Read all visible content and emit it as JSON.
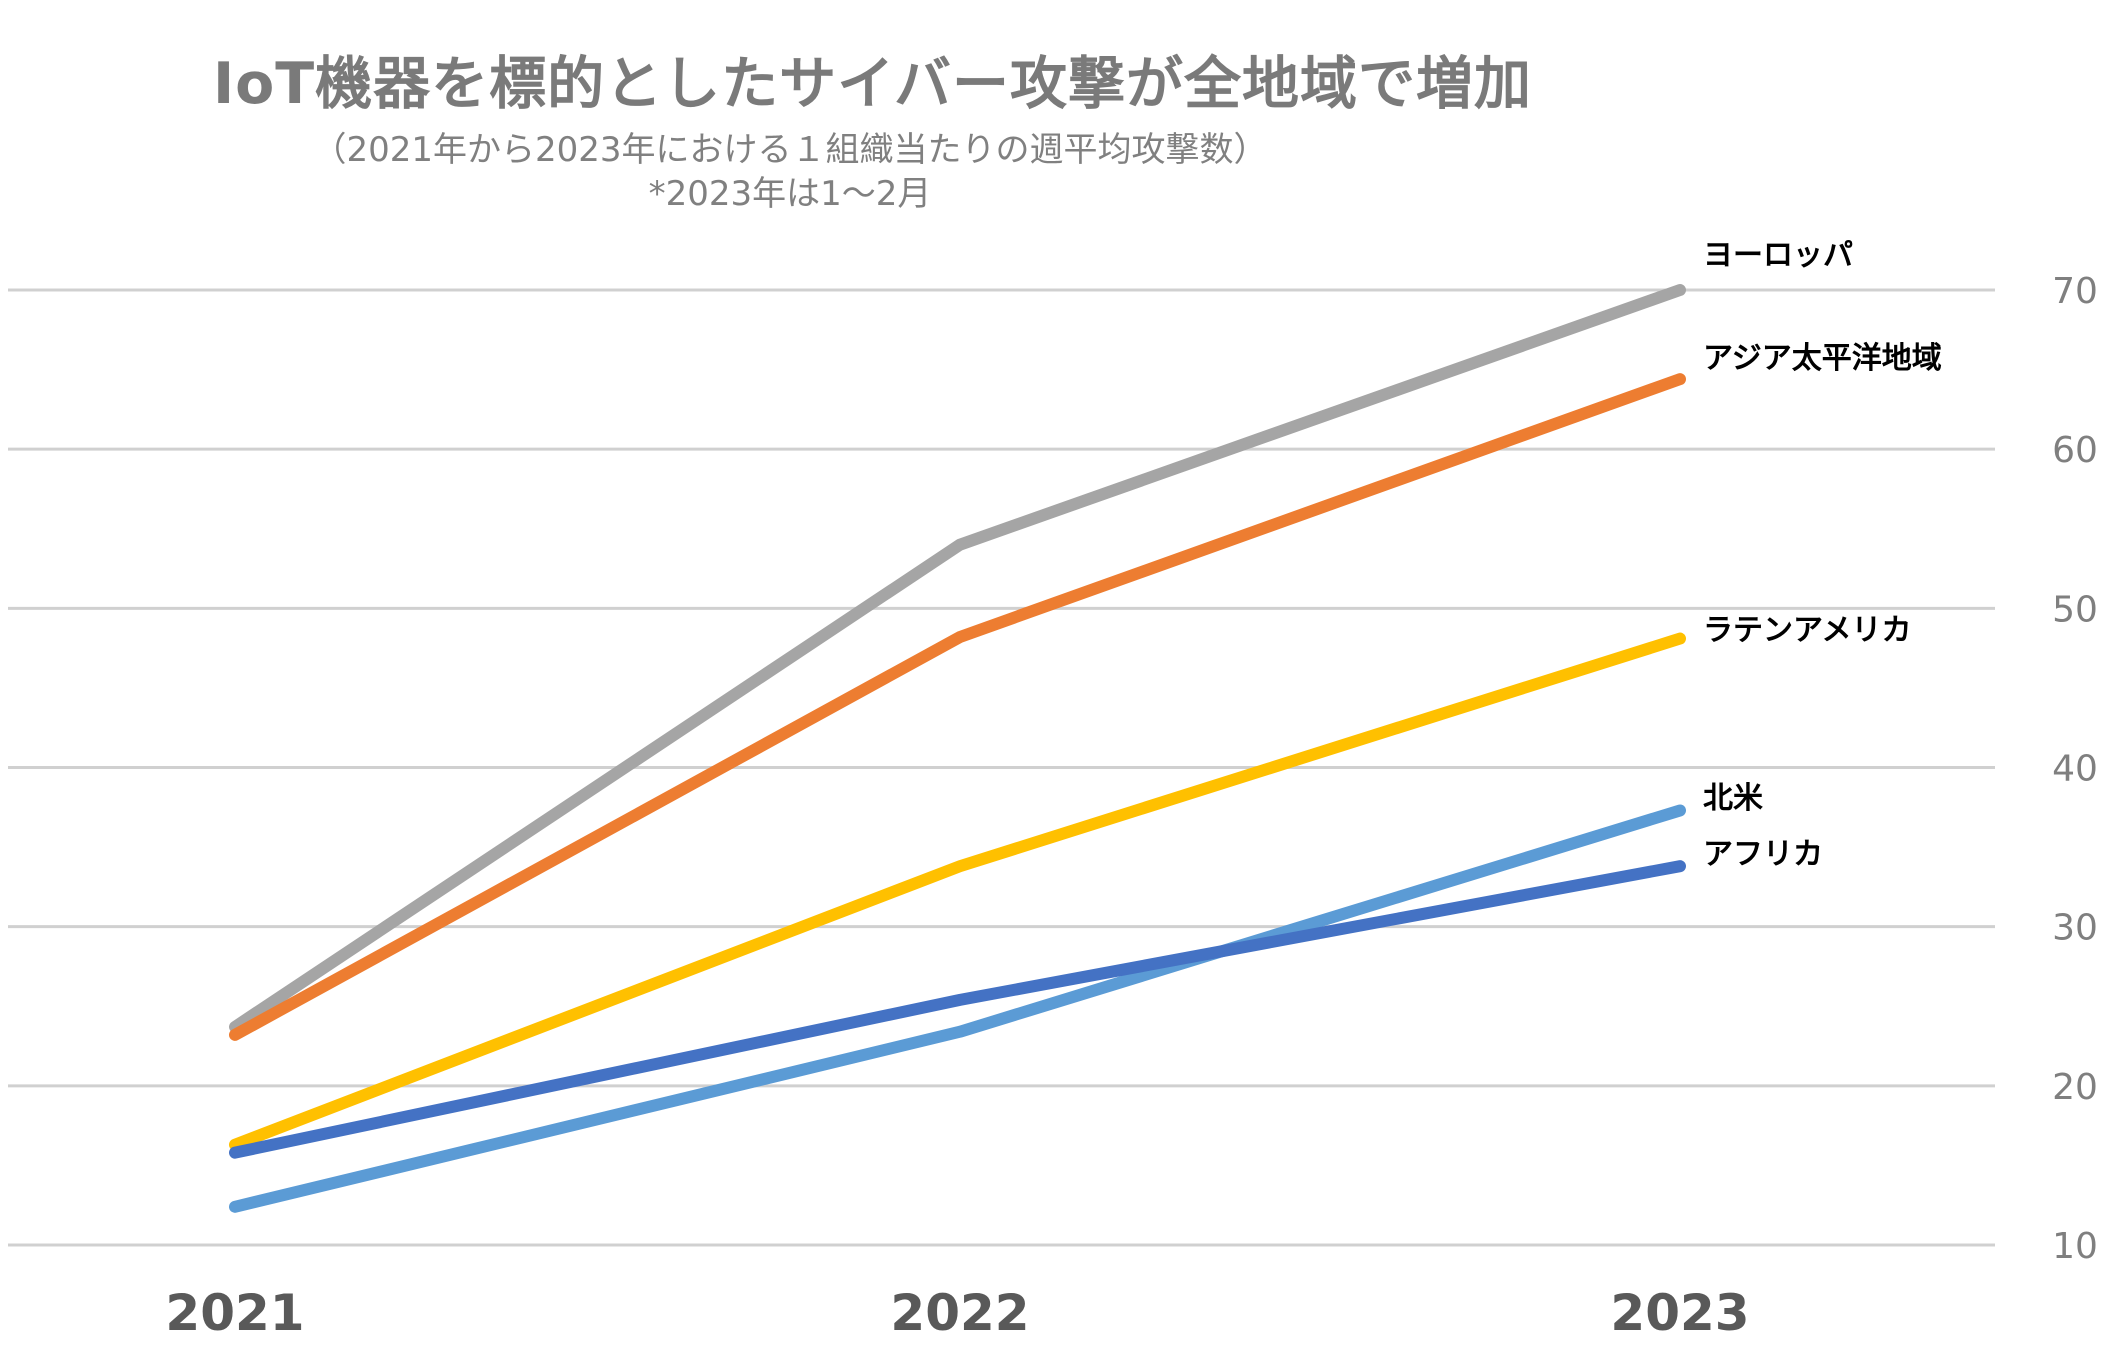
{
  "title": "IoT機器を標的としたサイバー攻撃が全地域で増加",
  "subtitle_line1": "（2021年から2023年における１組織当たりの週平均攻撃数）",
  "subtitle_line2": "*2023年は1～2月",
  "chart_data": {
    "type": "line",
    "title": "IoT機器を標的としたサイバー攻撃が全地域で増加",
    "subtitle": "（2021年から2023年における１組織当たりの週平均攻撃数） *2023年は1～2月",
    "categories": [
      "2021",
      "2022",
      "2023"
    ],
    "ylim": [
      10,
      70
    ],
    "yticks": [
      10,
      20,
      30,
      40,
      50,
      60,
      70
    ],
    "y_axis_side": "right",
    "grid": true,
    "legend": "direct labels at line ends (right)",
    "series": [
      {
        "name": "ヨーロッパ",
        "color": "#a5a5a5",
        "values": [
          23.7,
          54,
          70
        ]
      },
      {
        "name": "アジア太平洋地域",
        "color": "#ed7d31",
        "values": [
          23.2,
          48.2,
          64.4
        ]
      },
      {
        "name": "ラテンアメリカ",
        "color": "#ffc000",
        "values": [
          16.3,
          33.8,
          48.1
        ]
      },
      {
        "name": "北米",
        "color": "#5b9bd5",
        "values": [
          12.4,
          23.4,
          37.3
        ]
      },
      {
        "name": "アフリカ",
        "color": "#4472c4",
        "values": [
          15.8,
          25.4,
          33.8
        ]
      }
    ]
  }
}
